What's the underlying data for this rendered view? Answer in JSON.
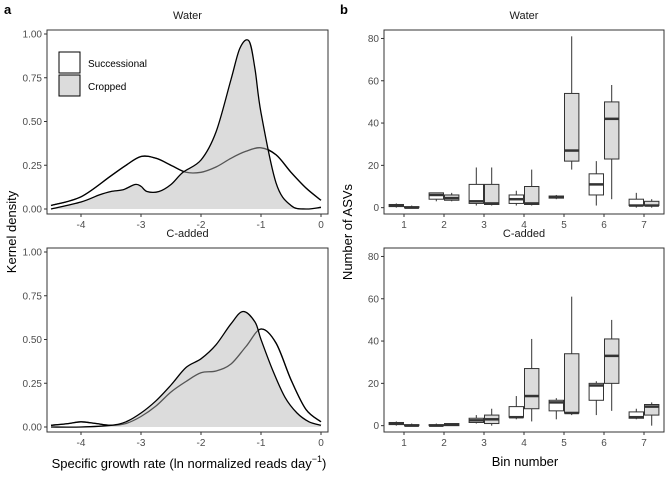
{
  "panels": [
    {
      "letter": "a",
      "ylabel": "Kernel density",
      "xlabel": "Specific growth rate (ln normalized reads day",
      "xlabel_sup": "−1",
      "xlabel_end": ")"
    },
    {
      "letter": "b",
      "ylabel": "Number of ASVs",
      "xlabel": "Bin number"
    }
  ],
  "legend": {
    "items": [
      {
        "label": "Successional",
        "fill": "#ffffff"
      },
      {
        "label": "Cropped",
        "fill": "#dcdcdc"
      }
    ]
  },
  "colors": {
    "successional_fill": "#ffffff",
    "cropped_fill": "#dcdcdc",
    "line": "#000000",
    "panel_border": "#333333",
    "cropped_outline_in_overlap": "#555555"
  },
  "chart_data": [
    {
      "type": "area",
      "facet": "Water",
      "xlim": [
        -4.55,
        0.1
      ],
      "ylim": [
        0,
        1
      ],
      "xticks": [
        -4,
        -3,
        -2,
        -1,
        0
      ],
      "yticks": [
        0.0,
        0.25,
        0.5,
        0.75,
        1.0
      ],
      "ytick_labels": [
        "0.00",
        "0.25",
        "0.50",
        "0.75",
        "1.00"
      ],
      "series": [
        {
          "name": "Successional",
          "x": [
            -4.5,
            -4.0,
            -3.5,
            -3.25,
            -3.0,
            -2.75,
            -2.5,
            -2.25,
            -2.0,
            -1.75,
            -1.5,
            -1.25,
            -1.0,
            -0.75,
            -0.5,
            -0.25,
            0.0
          ],
          "y": [
            0.02,
            0.07,
            0.19,
            0.25,
            0.3,
            0.29,
            0.25,
            0.21,
            0.21,
            0.24,
            0.29,
            0.33,
            0.35,
            0.31,
            0.21,
            0.12,
            0.05
          ]
        },
        {
          "name": "Cropped",
          "x": [
            -4.5,
            -4.0,
            -3.7,
            -3.5,
            -3.3,
            -3.1,
            -3.0,
            -2.9,
            -2.7,
            -2.5,
            -2.3,
            -2.0,
            -1.75,
            -1.5,
            -1.35,
            -1.2,
            -1.1,
            -1.0,
            -0.75,
            -0.5,
            -0.25,
            0.0
          ],
          "y": [
            0.0,
            0.04,
            0.08,
            0.1,
            0.11,
            0.14,
            0.13,
            0.1,
            0.1,
            0.14,
            0.21,
            0.28,
            0.44,
            0.74,
            0.92,
            0.96,
            0.8,
            0.55,
            0.15,
            0.02,
            0.0,
            0.01
          ]
        }
      ]
    },
    {
      "type": "area",
      "facet": "C-added",
      "xlim": [
        -4.55,
        0.1
      ],
      "ylim": [
        0,
        1
      ],
      "xticks": [
        -4,
        -3,
        -2,
        -1,
        0
      ],
      "yticks": [
        0.0,
        0.25,
        0.5,
        0.75,
        1.0
      ],
      "ytick_labels": [
        "0.00",
        "0.25",
        "0.50",
        "0.75",
        "1.00"
      ],
      "series": [
        {
          "name": "Successional",
          "x": [
            -4.5,
            -4.2,
            -4.0,
            -3.75,
            -3.5,
            -3.25,
            -3.0,
            -2.75,
            -2.5,
            -2.25,
            -2.0,
            -1.75,
            -1.5,
            -1.25,
            -1.0,
            -0.75,
            -0.5,
            -0.25,
            0.0
          ],
          "y": [
            0.01,
            0.02,
            0.03,
            0.02,
            0.01,
            0.02,
            0.06,
            0.12,
            0.2,
            0.26,
            0.31,
            0.32,
            0.36,
            0.46,
            0.56,
            0.48,
            0.27,
            0.1,
            0.03
          ]
        },
        {
          "name": "Cropped",
          "x": [
            -4.5,
            -4.0,
            -3.5,
            -3.25,
            -3.0,
            -2.75,
            -2.5,
            -2.25,
            -2.0,
            -1.75,
            -1.5,
            -1.3,
            -1.1,
            -1.0,
            -0.8,
            -0.6,
            -0.4,
            -0.2,
            0.0
          ],
          "y": [
            0.0,
            0.0,
            0.01,
            0.03,
            0.08,
            0.15,
            0.24,
            0.34,
            0.39,
            0.47,
            0.59,
            0.66,
            0.6,
            0.5,
            0.32,
            0.17,
            0.08,
            0.03,
            0.01
          ]
        }
      ]
    },
    {
      "type": "box",
      "facet": "Water",
      "categories": [
        "1",
        "2",
        "3",
        "4",
        "5",
        "6",
        "7"
      ],
      "ylim": [
        -3,
        84
      ],
      "yticks": [
        0,
        20,
        40,
        60,
        80
      ],
      "series": [
        {
          "name": "Successional",
          "boxes": [
            {
              "min": 0,
              "q1": 0.5,
              "median": 1,
              "q3": 1.5,
              "max": 2
            },
            {
              "min": 3,
              "q1": 4,
              "median": 6,
              "q3": 7,
              "max": 7
            },
            {
              "min": 1,
              "q1": 2,
              "median": 3,
              "q3": 11,
              "max": 19
            },
            {
              "min": 1,
              "q1": 2,
              "median": 4,
              "q3": 6,
              "max": 8
            },
            {
              "min": 4,
              "q1": 4.5,
              "median": 5,
              "q3": 5.5,
              "max": 6
            },
            {
              "min": 1,
              "q1": 6,
              "median": 11,
              "q3": 16,
              "max": 22
            },
            {
              "min": 0,
              "q1": 1,
              "median": 1,
              "q3": 4,
              "max": 7
            }
          ]
        },
        {
          "name": "Cropped",
          "boxes": [
            {
              "min": 0,
              "q1": 0,
              "median": 0,
              "q3": 0.5,
              "max": 1
            },
            {
              "min": 3,
              "q1": 3.5,
              "median": 4.5,
              "q3": 6,
              "max": 7
            },
            {
              "min": 1,
              "q1": 1.5,
              "median": 2,
              "q3": 11,
              "max": 19
            },
            {
              "min": 1,
              "q1": 1.5,
              "median": 2,
              "q3": 10,
              "max": 18
            },
            {
              "min": 18,
              "q1": 22,
              "median": 27,
              "q3": 54,
              "max": 81
            },
            {
              "min": 4,
              "q1": 23,
              "median": 42,
              "q3": 50,
              "max": 58
            },
            {
              "min": 0,
              "q1": 1,
              "median": 1,
              "q3": 3,
              "max": 4
            }
          ]
        }
      ]
    },
    {
      "type": "box",
      "facet": "C-added",
      "categories": [
        "1",
        "2",
        "3",
        "4",
        "5",
        "6",
        "7"
      ],
      "ylim": [
        -3,
        84
      ],
      "yticks": [
        0,
        20,
        40,
        60,
        80
      ],
      "series": [
        {
          "name": "Successional",
          "boxes": [
            {
              "min": 0,
              "q1": 0.5,
              "median": 1,
              "q3": 1.5,
              "max": 2
            },
            {
              "min": 0,
              "q1": 0,
              "median": 0,
              "q3": 0.5,
              "max": 1
            },
            {
              "min": 1,
              "q1": 1.5,
              "median": 2.5,
              "q3": 3.5,
              "max": 5
            },
            {
              "min": 3,
              "q1": 4,
              "median": 4,
              "q3": 9,
              "max": 14
            },
            {
              "min": 3,
              "q1": 7,
              "median": 11,
              "q3": 12,
              "max": 13
            },
            {
              "min": 5,
              "q1": 12,
              "median": 19,
              "q3": 20,
              "max": 21
            },
            {
              "min": 3,
              "q1": 3.5,
              "median": 4,
              "q3": 6.5,
              "max": 8
            }
          ]
        },
        {
          "name": "Cropped",
          "boxes": [
            {
              "min": 0,
              "q1": 0,
              "median": 0,
              "q3": 0.5,
              "max": 1
            },
            {
              "min": 0,
              "q1": 0,
              "median": 0.5,
              "q3": 1,
              "max": 1
            },
            {
              "min": 0,
              "q1": 1,
              "median": 3,
              "q3": 5,
              "max": 8
            },
            {
              "min": 2,
              "q1": 8,
              "median": 14,
              "q3": 27,
              "max": 41
            },
            {
              "min": 5,
              "q1": 6,
              "median": 6,
              "q3": 34,
              "max": 61
            },
            {
              "min": 7,
              "q1": 20,
              "median": 33,
              "q3": 41,
              "max": 50
            },
            {
              "min": 0,
              "q1": 5,
              "median": 9,
              "q3": 10,
              "max": 11
            }
          ]
        }
      ]
    }
  ]
}
